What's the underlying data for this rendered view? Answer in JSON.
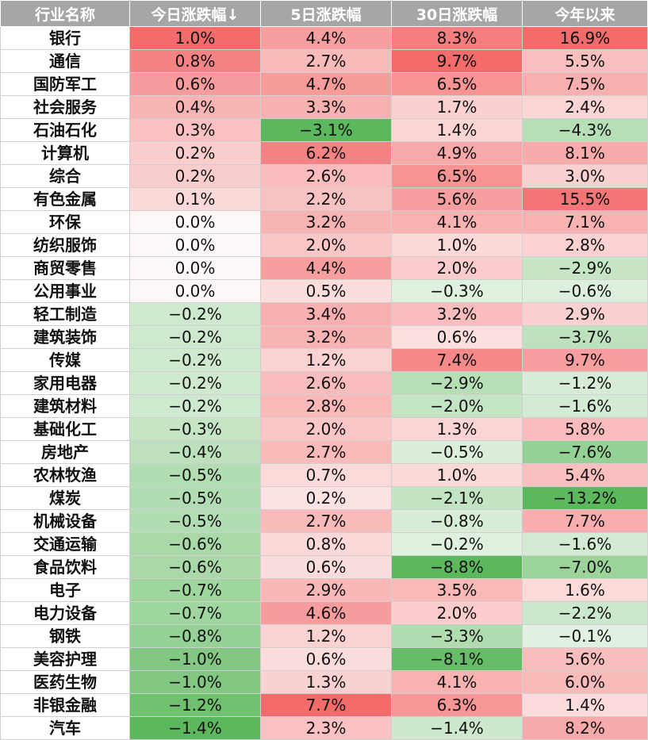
{
  "header": {
    "name": "行业名称",
    "today": "今日涨跌幅",
    "sort_arrow": "↓",
    "d5": "5日涨跌幅",
    "d30": "30日涨跌幅",
    "ytd": "今年以来"
  },
  "colors": {
    "header_bg": "#a6a6a6",
    "header_text": "#ffffff",
    "positive_max": "#f36b6b",
    "negative_max": "#5cb85c"
  },
  "rows": [
    {
      "name": "银行",
      "today": "1.0%",
      "d5": "4.4%",
      "d30": "8.3%",
      "ytd": "16.9%"
    },
    {
      "name": "通信",
      "today": "0.8%",
      "d5": "2.7%",
      "d30": "9.7%",
      "ytd": "5.5%"
    },
    {
      "name": "国防军工",
      "today": "0.6%",
      "d5": "4.7%",
      "d30": "6.5%",
      "ytd": "7.5%"
    },
    {
      "name": "社会服务",
      "today": "0.4%",
      "d5": "3.3%",
      "d30": "1.7%",
      "ytd": "2.4%"
    },
    {
      "name": "石油石化",
      "today": "0.3%",
      "d5": "−3.1%",
      "d30": "1.4%",
      "ytd": "−4.3%"
    },
    {
      "name": "计算机",
      "today": "0.2%",
      "d5": "6.2%",
      "d30": "4.9%",
      "ytd": "8.1%"
    },
    {
      "name": "综合",
      "today": "0.2%",
      "d5": "2.6%",
      "d30": "6.5%",
      "ytd": "3.0%"
    },
    {
      "name": "有色金属",
      "today": "0.1%",
      "d5": "2.2%",
      "d30": "5.6%",
      "ytd": "15.5%"
    },
    {
      "name": "环保",
      "today": "0.0%",
      "d5": "3.2%",
      "d30": "4.1%",
      "ytd": "7.1%"
    },
    {
      "name": "纺织服饰",
      "today": "0.0%",
      "d5": "2.0%",
      "d30": "1.0%",
      "ytd": "2.8%"
    },
    {
      "name": "商贸零售",
      "today": "0.0%",
      "d5": "4.4%",
      "d30": "2.0%",
      "ytd": "−2.9%"
    },
    {
      "name": "公用事业",
      "today": "0.0%",
      "d5": "0.5%",
      "d30": "−0.3%",
      "ytd": "−0.6%"
    },
    {
      "name": "轻工制造",
      "today": "−0.2%",
      "d5": "3.4%",
      "d30": "3.2%",
      "ytd": "2.9%"
    },
    {
      "name": "建筑装饰",
      "today": "−0.2%",
      "d5": "3.2%",
      "d30": "0.6%",
      "ytd": "−3.7%"
    },
    {
      "name": "传媒",
      "today": "−0.2%",
      "d5": "1.2%",
      "d30": "7.4%",
      "ytd": "9.7%"
    },
    {
      "name": "家用电器",
      "today": "−0.2%",
      "d5": "2.6%",
      "d30": "−2.9%",
      "ytd": "−1.2%"
    },
    {
      "name": "建筑材料",
      "today": "−0.2%",
      "d5": "2.8%",
      "d30": "−2.0%",
      "ytd": "−1.6%"
    },
    {
      "name": "基础化工",
      "today": "−0.3%",
      "d5": "2.0%",
      "d30": "1.3%",
      "ytd": "5.8%"
    },
    {
      "name": "房地产",
      "today": "−0.4%",
      "d5": "2.7%",
      "d30": "−0.5%",
      "ytd": "−7.6%"
    },
    {
      "name": "农林牧渔",
      "today": "−0.5%",
      "d5": "0.7%",
      "d30": "1.0%",
      "ytd": "5.4%"
    },
    {
      "name": "煤炭",
      "today": "−0.5%",
      "d5": "0.2%",
      "d30": "−2.1%",
      "ytd": "−13.2%"
    },
    {
      "name": "机械设备",
      "today": "−0.5%",
      "d5": "2.7%",
      "d30": "−0.8%",
      "ytd": "7.7%"
    },
    {
      "name": "交通运输",
      "today": "−0.6%",
      "d5": "0.8%",
      "d30": "−0.2%",
      "ytd": "−1.6%"
    },
    {
      "name": "食品饮料",
      "today": "−0.6%",
      "d5": "0.6%",
      "d30": "−8.8%",
      "ytd": "−7.0%"
    },
    {
      "name": "电子",
      "today": "−0.7%",
      "d5": "2.9%",
      "d30": "3.5%",
      "ytd": "1.6%"
    },
    {
      "name": "电力设备",
      "today": "−0.7%",
      "d5": "4.6%",
      "d30": "2.0%",
      "ytd": "−2.2%"
    },
    {
      "name": "钢铁",
      "today": "−0.8%",
      "d5": "1.2%",
      "d30": "−3.3%",
      "ytd": "−0.1%"
    },
    {
      "name": "美容护理",
      "today": "−1.0%",
      "d5": "0.6%",
      "d30": "−8.1%",
      "ytd": "5.6%"
    },
    {
      "name": "医药生物",
      "today": "−1.0%",
      "d5": "1.3%",
      "d30": "4.1%",
      "ytd": "6.0%"
    },
    {
      "name": "非银金融",
      "today": "−1.2%",
      "d5": "7.7%",
      "d30": "6.3%",
      "ytd": "1.4%"
    },
    {
      "name": "汽车",
      "today": "−1.4%",
      "d5": "2.3%",
      "d30": "−1.4%",
      "ytd": "8.2%"
    }
  ]
}
